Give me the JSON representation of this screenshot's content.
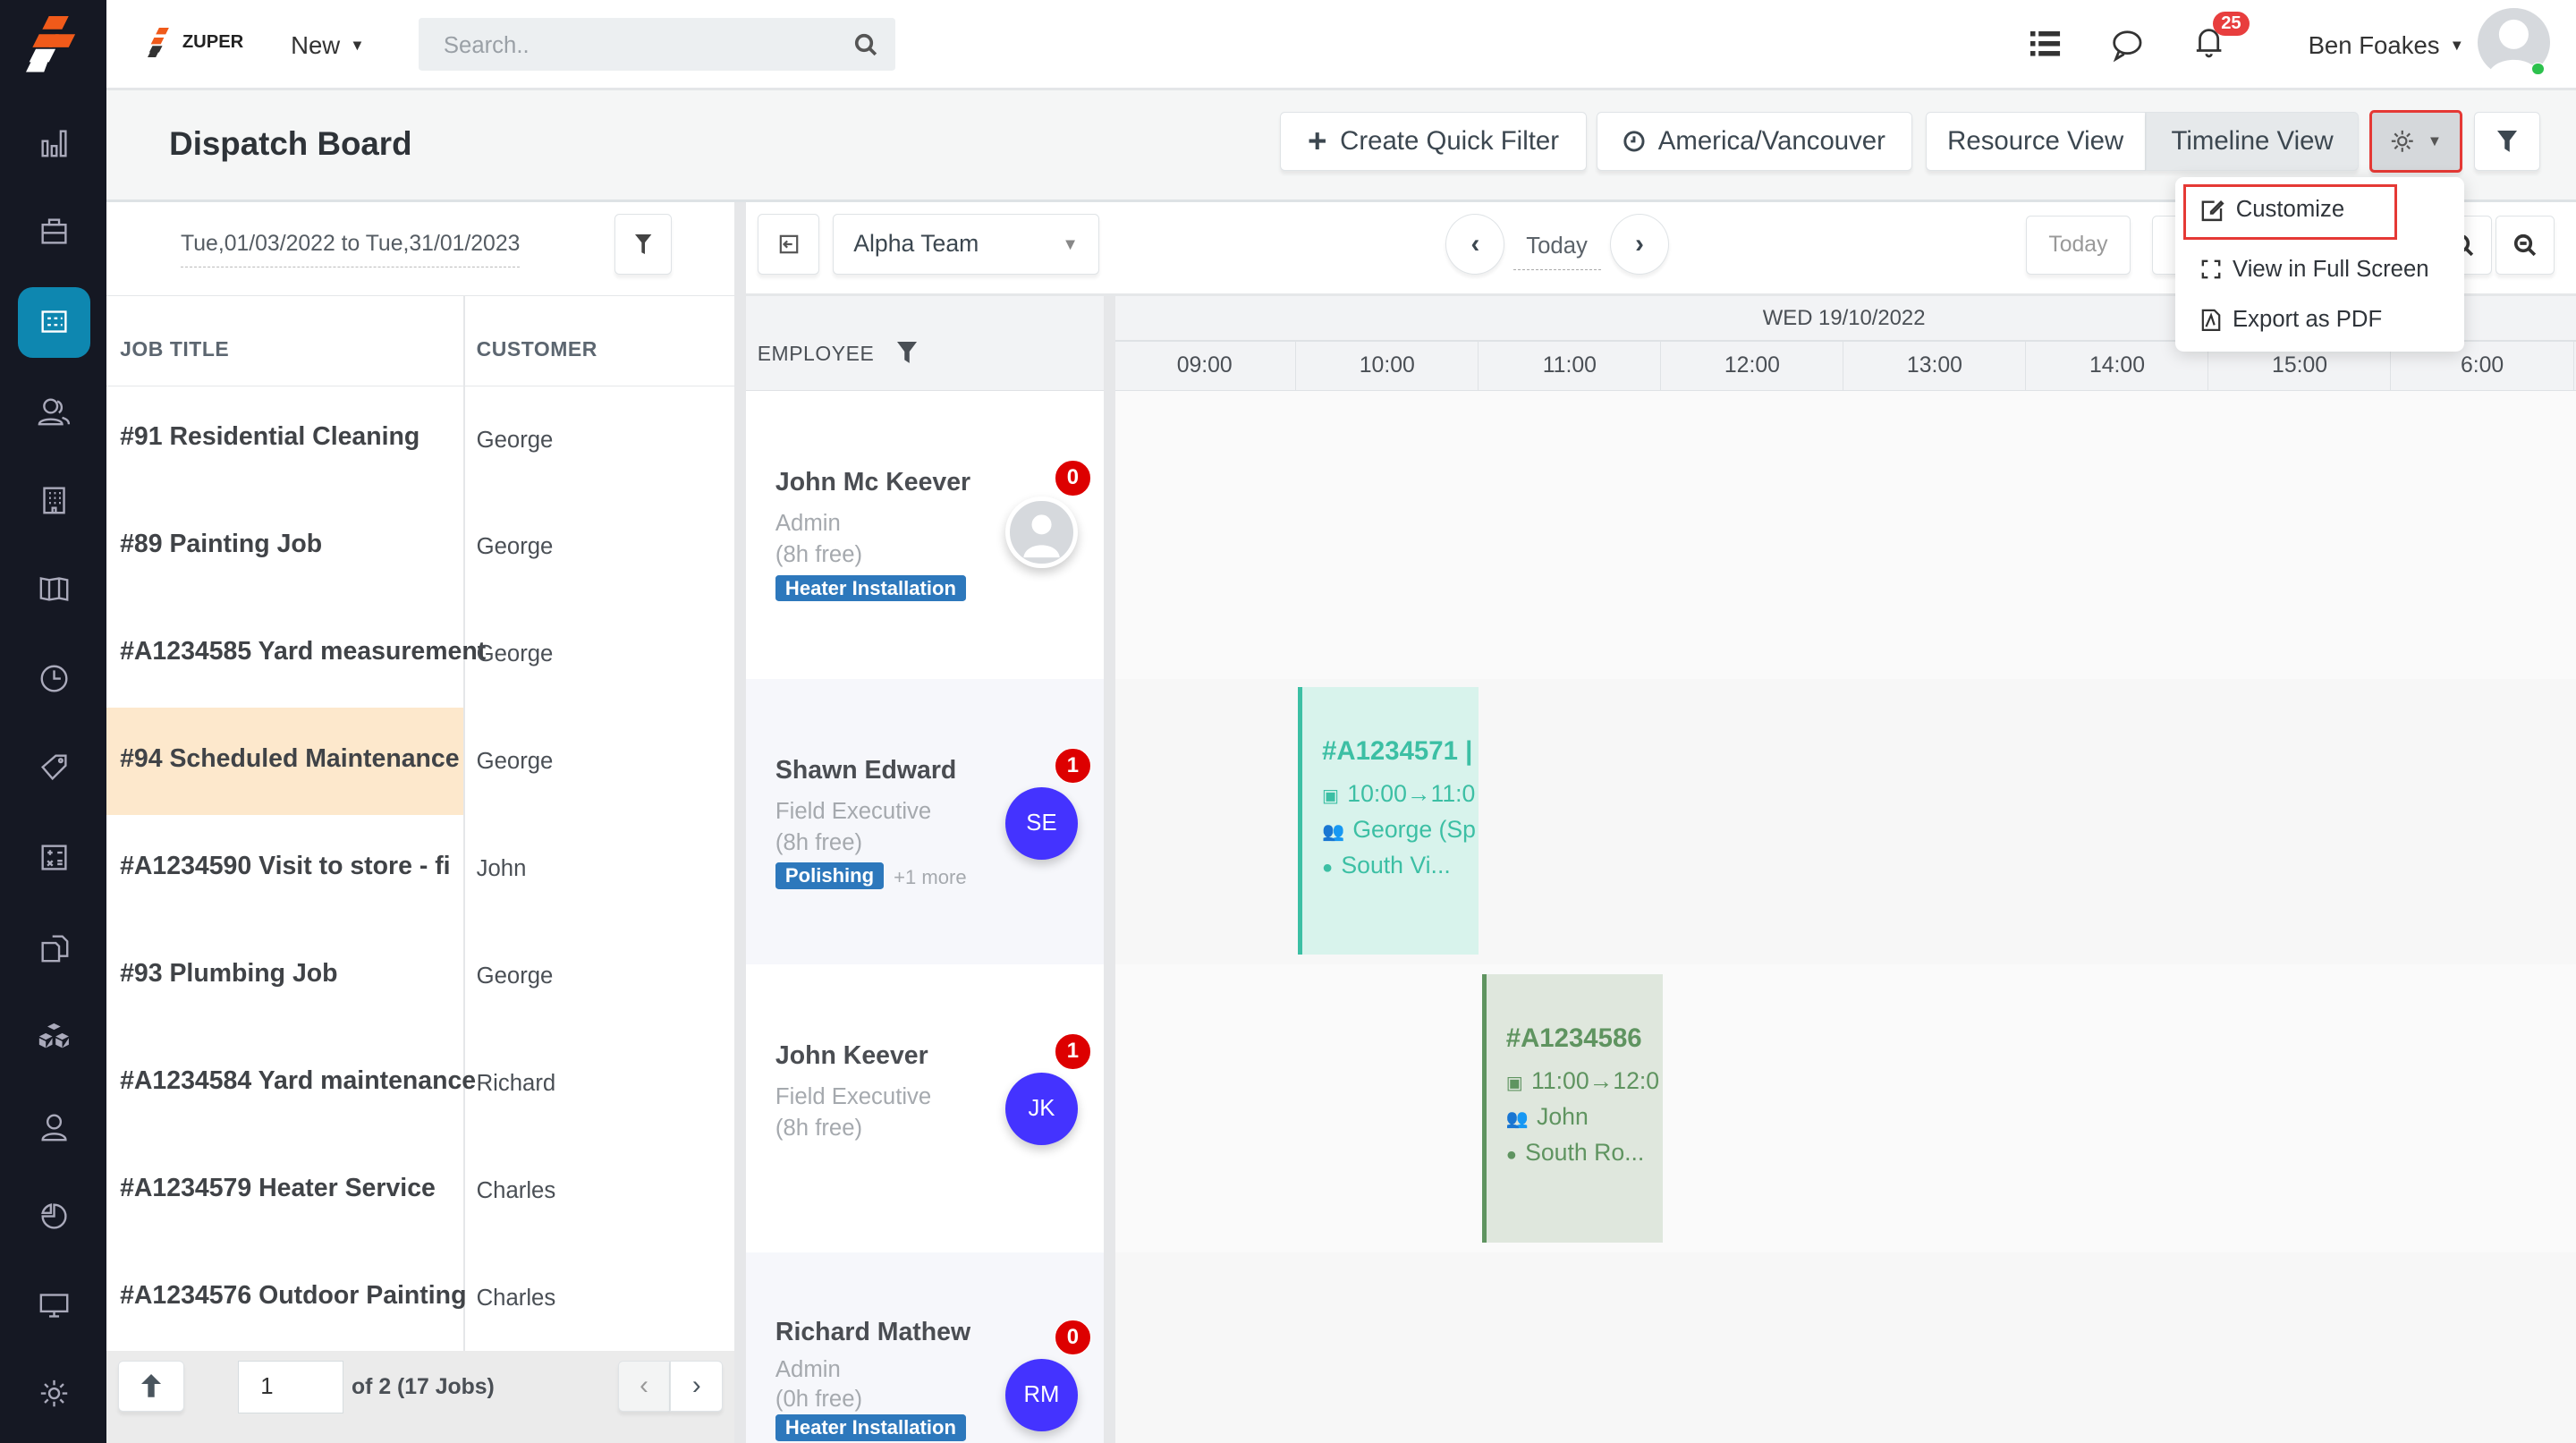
{
  "brand": {
    "name": "ZUPER",
    "accent": "#f05a1a"
  },
  "topbar": {
    "new_label": "New",
    "search_placeholder": "Search..",
    "notification_count": "25",
    "user_name": "Ben Foakes"
  },
  "sidebar": {
    "items": [
      "dashboard",
      "jobs",
      "dispatch-board",
      "customers",
      "organizations",
      "maps",
      "timesheets",
      "products",
      "quotes",
      "invoices",
      "assets",
      "users",
      "reports",
      "screens",
      "settings"
    ],
    "active": "dispatch-board",
    "active_color": "#0e87b0"
  },
  "page": {
    "title": "Dispatch Board"
  },
  "toolbar": {
    "create_quick_filter": "Create Quick Filter",
    "timezone": "America/Vancouver",
    "resource_view": "Resource View",
    "timeline_view": "Timeline View"
  },
  "settings_menu": {
    "items": [
      {
        "label": "Customize",
        "icon": "edit-icon"
      },
      {
        "label": "View in Full Screen",
        "icon": "fullscreen-icon"
      },
      {
        "label": "Export as PDF",
        "icon": "pdf-icon"
      }
    ]
  },
  "jobs_panel": {
    "date_range": "Tue,01/03/2022 to Tue,31/01/2023",
    "columns": [
      "JOB TITLE",
      "CUSTOMER"
    ],
    "rows": [
      {
        "title": "#91 Residential Cleaning",
        "customer": "George"
      },
      {
        "title": "#89 Painting Job",
        "customer": "George"
      },
      {
        "title": "#A1234585 Yard measurement",
        "customer": "George"
      },
      {
        "title": "#94 Scheduled Maintenance",
        "customer": "George",
        "highlighted": true
      },
      {
        "title": "#A1234590 Visit to store - fi",
        "customer": "John"
      },
      {
        "title": "#93 Plumbing Job",
        "customer": "George"
      },
      {
        "title": "#A1234584 Yard maintenance",
        "customer": "Richard"
      },
      {
        "title": "#A1234579 Heater Service",
        "customer": "Charles"
      },
      {
        "title": "#A1234576 Outdoor Painting",
        "customer": "Charles"
      }
    ],
    "pagination": {
      "page": "1",
      "of_text": "of 2 (17 Jobs)"
    }
  },
  "board": {
    "team": "Alpha Team",
    "today_label": "Today",
    "today_button": "Today",
    "employee_header": "EMPLOYEE",
    "date_header": "WED 19/10/2022",
    "hours": [
      "09:00",
      "10:00",
      "11:00",
      "12:00",
      "13:00",
      "14:00",
      "15:00",
      "6:00"
    ],
    "employees": [
      {
        "name": "John Mc Keever",
        "role": "Admin",
        "free": "(8h free)",
        "tag": "Heater Installation",
        "more": "",
        "initials": "",
        "count": "0"
      },
      {
        "name": "Shawn Edward",
        "role": "Field Executive",
        "free": "(8h free)",
        "tag": "Polishing",
        "more": "+1 more",
        "initials": "SE",
        "count": "1"
      },
      {
        "name": "John Keever",
        "role": "Field Executive",
        "free": "(8h free)",
        "tag": "",
        "more": "",
        "initials": "JK",
        "count": "1"
      },
      {
        "name": "Richard Mathew",
        "role": "Admin",
        "free": "(0h free)",
        "tag": "Heater Installation",
        "more": "",
        "initials": "RM",
        "count": "0"
      }
    ],
    "events": [
      {
        "id": "#A1234571 |",
        "time": "10:00→11:0",
        "customer": "George (Sp",
        "location": "South Vi...",
        "color": "#3cbfa4",
        "bg": "#d8f3ec"
      },
      {
        "id": "#A1234586",
        "time": "11:00→12:0",
        "customer": "John",
        "location": "South Ro...",
        "color": "#5f9460",
        "bg": "#dfe7dd"
      }
    ]
  }
}
